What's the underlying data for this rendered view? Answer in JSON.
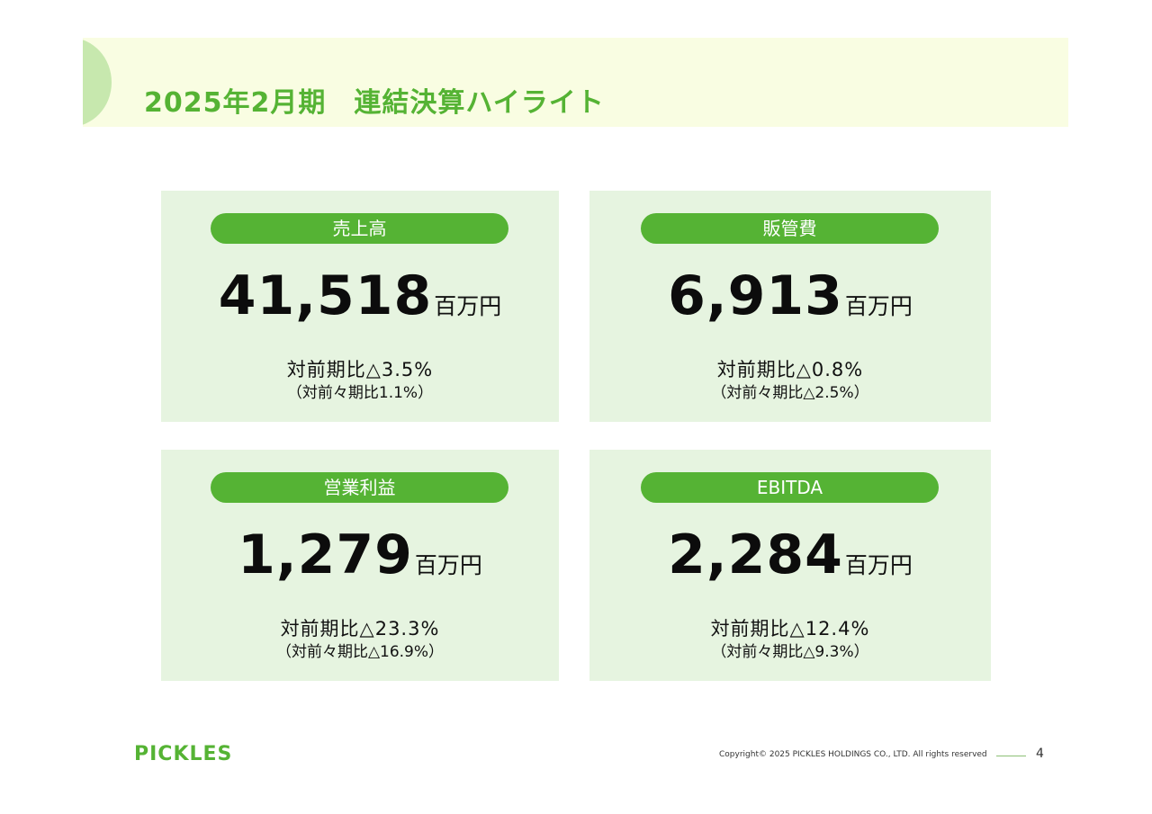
{
  "header": {
    "title": "2025年2月期　連結決算ハイライト"
  },
  "cards": [
    {
      "label": "売上高",
      "value": "41,518",
      "unit": "百万円",
      "yoy": "対前期比△3.5%",
      "yoy2": "（対前々期比1.1%）"
    },
    {
      "label": "販管費",
      "value": "6,913",
      "unit": "百万円",
      "yoy": "対前期比△0.8%",
      "yoy2": "（対前々期比△2.5%）"
    },
    {
      "label": "営業利益",
      "value": "1,279",
      "unit": "百万円",
      "yoy": "対前期比△23.3%",
      "yoy2": "（対前々期比△16.9%）"
    },
    {
      "label": "EBITDA",
      "value": "2,284",
      "unit": "百万円",
      "yoy": "対前期比△12.4%",
      "yoy2": "（対前々期比△9.3%）"
    }
  ],
  "footer": {
    "logo": "PICKLES",
    "copyright": "Copyright© 2025 PICKLES HOLDINGS CO., LTD. All rights reserved",
    "page_number": "4"
  },
  "colors": {
    "accent_green": "#55b334",
    "card_bg": "#e6f4e0",
    "title_band_bg": "#f9fde2"
  }
}
